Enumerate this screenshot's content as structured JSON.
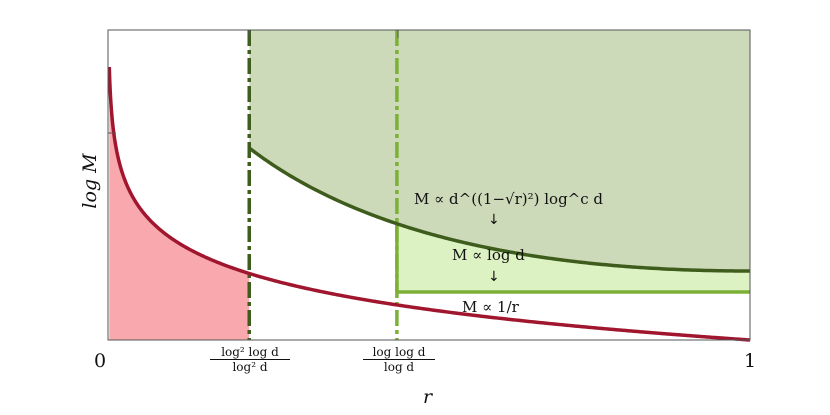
{
  "chart_data": {
    "type": "area",
    "xlabel": "r",
    "ylabel": "log M",
    "xlim": [
      0,
      1
    ],
    "x_tick_labels": {
      "start": "0",
      "end": "1",
      "first_threshold": {
        "num": "log² log d",
        "den": "log² d"
      },
      "second_threshold": {
        "num": "log log d",
        "den": "log d"
      }
    },
    "thresholds": {
      "first": 0.22,
      "second": 0.45
    },
    "curves": [
      {
        "id": "lower",
        "color": "#a0162e",
        "fill": "#f9a9ad",
        "formula": "M ∝ 1/r"
      },
      {
        "id": "upper",
        "color": "#3e5c1c",
        "fill": "#cddab9"
      }
    ],
    "middle_region": {
      "color": "#7cb036",
      "fill": "#dcf2c3",
      "formula": "M ∝ log d"
    },
    "annotations": {
      "upper": "M ∝ d^((1−√r)²) log^c d",
      "middle": "M ∝ log d",
      "lower": "M ∝ 1/r"
    },
    "grid": false
  }
}
